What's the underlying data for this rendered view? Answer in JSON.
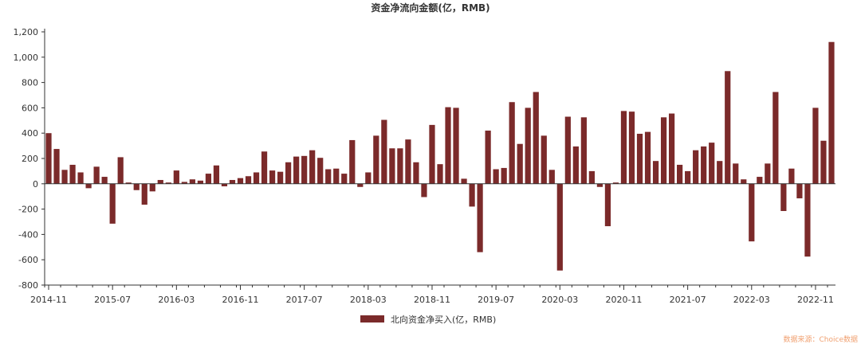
{
  "chart_data": {
    "type": "bar",
    "title": "资金净流向金额(亿，RMB)",
    "legend": {
      "label": "北向资金净买入(亿，RMB)",
      "placement": "bottom-center"
    },
    "source": "数据来源：Choice数据",
    "bar_color": "#7b2a2a",
    "ylim": [
      -800,
      1200
    ],
    "ytick_step": 200,
    "ytick_labels": [
      "1,200",
      "1,000",
      "800",
      "600",
      "400",
      "200",
      "0",
      "-200",
      "-400",
      "-600",
      "-800"
    ],
    "xtick_labels": [
      {
        "index": 0,
        "label": "2014-11"
      },
      {
        "index": 8,
        "label": "2015-07"
      },
      {
        "index": 16,
        "label": "2016-03"
      },
      {
        "index": 24,
        "label": "2016-11"
      },
      {
        "index": 32,
        "label": "2017-07"
      },
      {
        "index": 40,
        "label": "2018-03"
      },
      {
        "index": 48,
        "label": "2018-11"
      },
      {
        "index": 56,
        "label": "2019-07"
      },
      {
        "index": 64,
        "label": "2020-03"
      },
      {
        "index": 72,
        "label": "2020-11"
      },
      {
        "index": 80,
        "label": "2021-07"
      },
      {
        "index": 88,
        "label": "2022-03"
      },
      {
        "index": 96,
        "label": "2022-11"
      }
    ],
    "categories": [
      "2014-11",
      "2014-12",
      "2015-01",
      "2015-02",
      "2015-03",
      "2015-04",
      "2015-05",
      "2015-06",
      "2015-07",
      "2015-08",
      "2015-09",
      "2015-10",
      "2015-11",
      "2015-12",
      "2016-01",
      "2016-02",
      "2016-03",
      "2016-04",
      "2016-05",
      "2016-06",
      "2016-07",
      "2016-08",
      "2016-09",
      "2016-10",
      "2016-11",
      "2016-12",
      "2017-01",
      "2017-02",
      "2017-03",
      "2017-04",
      "2017-05",
      "2017-06",
      "2017-07",
      "2017-08",
      "2017-09",
      "2017-10",
      "2017-11",
      "2017-12",
      "2018-01",
      "2018-02",
      "2018-03",
      "2018-04",
      "2018-05",
      "2018-06",
      "2018-07",
      "2018-08",
      "2018-09",
      "2018-10",
      "2018-11",
      "2018-12",
      "2019-01",
      "2019-02",
      "2019-03",
      "2019-04",
      "2019-05",
      "2019-06",
      "2019-07",
      "2019-08",
      "2019-09",
      "2019-10",
      "2019-11",
      "2019-12",
      "2020-01",
      "2020-02",
      "2020-03",
      "2020-04",
      "2020-05",
      "2020-06",
      "2020-07",
      "2020-08",
      "2020-09",
      "2020-10",
      "2020-11",
      "2020-12",
      "2021-01",
      "2021-02",
      "2021-03",
      "2021-04",
      "2021-05",
      "2021-06",
      "2021-07",
      "2021-08",
      "2021-09",
      "2021-10",
      "2021-11",
      "2021-12",
      "2022-01",
      "2022-02",
      "2022-03",
      "2022-04",
      "2022-05",
      "2022-06",
      "2022-07",
      "2022-08",
      "2022-09",
      "2022-10",
      "2022-11",
      "2022-12",
      "2023-01"
    ],
    "values": [
      400,
      275,
      110,
      150,
      90,
      -35,
      135,
      55,
      -315,
      210,
      10,
      -50,
      -165,
      -60,
      30,
      10,
      105,
      15,
      35,
      25,
      80,
      145,
      -20,
      30,
      45,
      60,
      90,
      255,
      105,
      95,
      170,
      215,
      220,
      265,
      205,
      115,
      120,
      80,
      345,
      -25,
      90,
      380,
      505,
      280,
      280,
      350,
      170,
      -105,
      465,
      155,
      605,
      600,
      40,
      -180,
      -540,
      420,
      115,
      125,
      645,
      315,
      600,
      725,
      380,
      110,
      -685,
      530,
      295,
      525,
      100,
      -25,
      -335,
      10,
      575,
      570,
      395,
      410,
      180,
      525,
      555,
      150,
      100,
      265,
      295,
      325,
      180,
      890,
      160,
      35,
      -455,
      55,
      160,
      725,
      -215,
      120,
      -115,
      -575,
      600,
      340,
      1120
    ]
  }
}
